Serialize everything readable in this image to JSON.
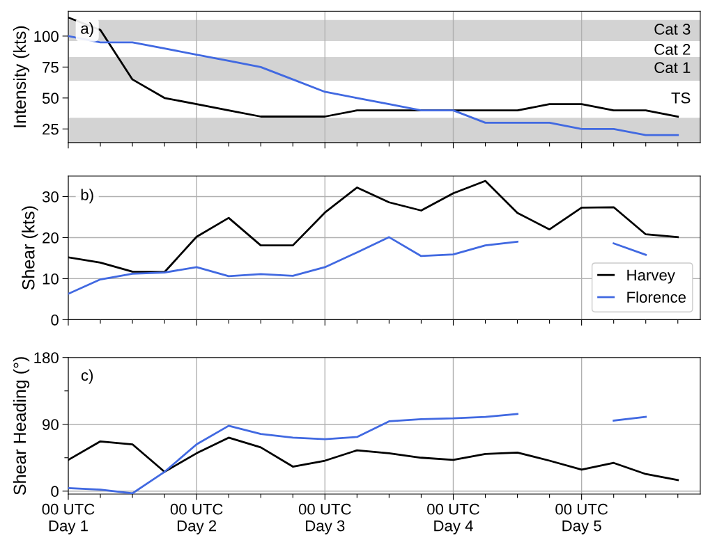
{
  "chart_data": [
    {
      "type": "line",
      "ylabel": "Intensity (kts)",
      "categories": [
        null,
        null,
        null,
        null,
        null,
        null,
        null,
        null,
        null,
        null,
        null,
        null,
        null,
        null,
        null,
        null,
        null,
        null,
        null,
        null
      ],
      "ylim": [
        14,
        120
      ],
      "yticks": [
        25,
        50,
        75,
        100
      ],
      "tick_labels": "y",
      "grid": "x",
      "legend": false,
      "series": [
        {
          "color": "#000000",
          "values": [
            115,
            105,
            65,
            50,
            45,
            40,
            35,
            35,
            35,
            40,
            40,
            40,
            40,
            40,
            40,
            45,
            45,
            40,
            40,
            35
          ]
        },
        {
          "color": "#4169e1",
          "values": [
            100,
            95,
            95,
            90,
            85,
            80,
            75,
            65,
            55,
            50,
            45,
            40,
            40,
            30,
            30,
            30,
            25,
            25,
            20,
            20
          ]
        }
      ],
      "bands": [
        {
          "axis": "y",
          "from": 96,
          "to": 113,
          "label": "Cat 3",
          "color": "#d3d3d3"
        },
        {
          "axis": "y",
          "from": 64,
          "to": 83,
          "label": "Cat 1",
          "color": "#d3d3d3"
        },
        {
          "axis": "y",
          "from": 14,
          "to": 34,
          "color": "#d3d3d3"
        }
      ],
      "annotations": [
        "a)",
        "Cat 2",
        "TS"
      ]
    },
    {
      "type": "line",
      "ylabel": "Shear (kts)",
      "categories": [
        null,
        null,
        null,
        null,
        null,
        null,
        null,
        null,
        null,
        null,
        null,
        null,
        null,
        null,
        null,
        null,
        null,
        null,
        null,
        null
      ],
      "ylim": [
        0,
        35
      ],
      "yticks": [
        0,
        10,
        20,
        30
      ],
      "tick_labels": "y",
      "grid": true,
      "legend": "lower right",
      "series": [
        {
          "name": "Harvey",
          "color": "#000000",
          "values": [
            15.2,
            13.9,
            11.7,
            11.6,
            20.2,
            24.8,
            18.1,
            18.1,
            26.1,
            32.2,
            28.6,
            26.6,
            30.8,
            33.8,
            26.0,
            22.0,
            27.3,
            27.4,
            20.8,
            20.1
          ]
        },
        {
          "name": "Florence",
          "color": "#4169e1",
          "values": [
            6.3,
            9.8,
            11.2,
            11.5,
            12.8,
            10.6,
            11.1,
            10.7,
            12.8,
            16.4,
            20.1,
            15.5,
            15.9,
            18.1,
            19.0,
            null,
            null,
            18.6,
            15.8,
            null
          ]
        }
      ],
      "annotations": [
        "b)"
      ]
    },
    {
      "type": "line",
      "ylabel": "Shear Heading (°)",
      "categories": [
        "00 UTC\nDay 1",
        null,
        null,
        null,
        "00 UTC\nDay 2",
        null,
        null,
        null,
        "00 UTC\nDay 3",
        null,
        null,
        null,
        "00 UTC\nDay 4",
        null,
        null,
        null,
        "00 UTC\nDay 5",
        null,
        null,
        null
      ],
      "ylim": [
        -4,
        180
      ],
      "yticks": [
        0,
        {
          "value": 45,
          "label": null
        },
        90,
        {
          "value": 135,
          "label": null
        },
        180
      ],
      "grid": true,
      "legend": false,
      "series": [
        {
          "color": "#000000",
          "values": [
            42,
            67,
            63,
            26,
            51,
            72,
            59,
            33,
            41,
            55,
            51,
            45,
            42,
            50,
            52,
            41,
            29,
            38,
            23,
            15
          ]
        },
        {
          "color": "#4169e1",
          "values": [
            4,
            2,
            -3,
            26,
            63,
            88,
            77,
            72,
            70,
            73,
            94,
            97,
            98,
            100,
            104,
            null,
            null,
            95,
            100,
            null
          ]
        }
      ],
      "annotations": [
        "c)"
      ]
    }
  ]
}
